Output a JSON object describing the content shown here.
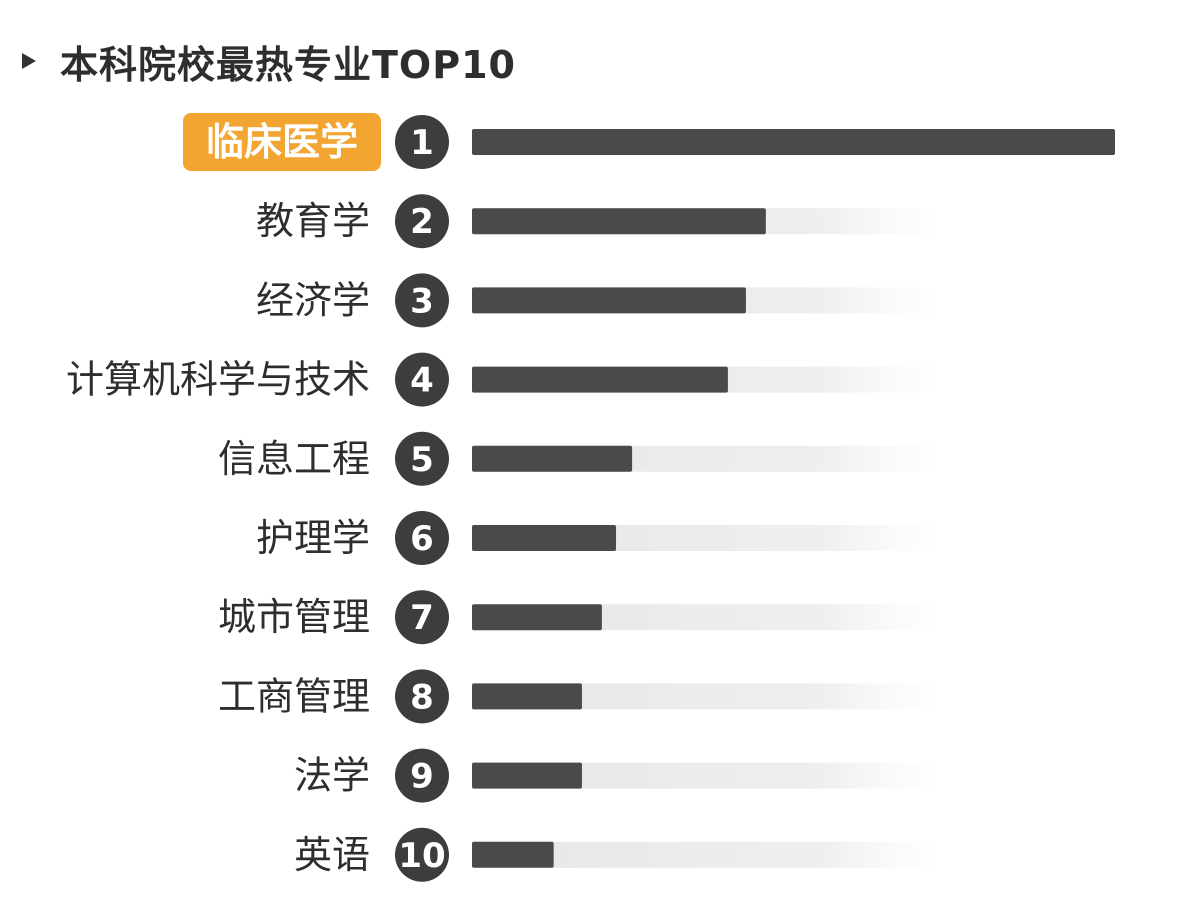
{
  "title": "本科院校最热专业TOP10",
  "colors": {
    "bar": "#4a4a4a",
    "track": "#e9e9e9",
    "highlight": "#f2a531",
    "rank_circle": "#3d3d3d"
  },
  "chart_data": {
    "type": "bar",
    "orientation": "horizontal",
    "title": "本科院校最热专业TOP10",
    "categories": [
      "临床医学",
      "教育学",
      "经济学",
      "计算机科学与技术",
      "信息工程",
      "护理学",
      "城市管理",
      "工商管理",
      "法学",
      "英语"
    ],
    "ranks": [
      "1",
      "2",
      "3",
      "4",
      "5",
      "6",
      "7",
      "8",
      "9",
      "10"
    ],
    "values": [
      100,
      45.7,
      42.6,
      39.8,
      24.9,
      22.4,
      20.2,
      17.1,
      17.1,
      12.7
    ],
    "highlight_index": 0,
    "xlim": [
      0,
      100
    ],
    "grid": false,
    "axis_labels_visible": false
  }
}
